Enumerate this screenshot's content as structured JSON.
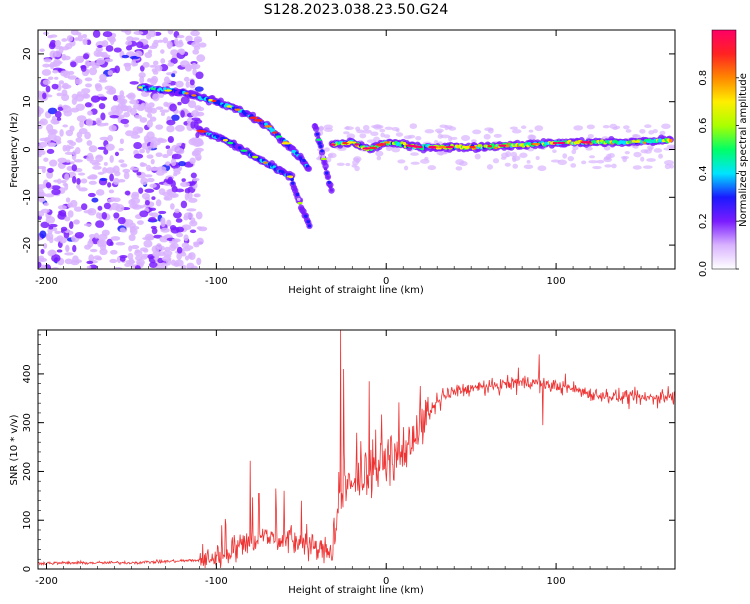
{
  "title": "S128.2023.038.23.50.G24",
  "chart_data": [
    {
      "type": "heatmap",
      "xlabel": "Height of straight line (km)",
      "ylabel": "Frequency (Hz)",
      "xlim": [
        -205,
        170
      ],
      "ylim": [
        -25,
        25
      ],
      "xticks": [
        -200,
        -100,
        0,
        100
      ],
      "yticks": [
        -20,
        -10,
        0,
        10,
        20
      ],
      "colorbar": {
        "label": "Normalized spectral amplitude",
        "range": [
          0,
          1
        ],
        "ticks": [
          0.0,
          0.2,
          0.4,
          0.6,
          0.8
        ],
        "tick_labels": [
          "0.0",
          "0.2",
          "0.4",
          "0.6",
          "0.8"
        ],
        "colors": [
          "#ffffff",
          "#d9b3ff",
          "#7a1cff",
          "#1a1aff",
          "#00e5ff",
          "#00ff66",
          "#aaff00",
          "#ffee00",
          "#ff8800",
          "#ff2222",
          "#ff0066"
        ]
      },
      "features": {
        "noise_x_range": [
          -205,
          -108
        ],
        "streaks": [
          {
            "x": [
              -145,
              -120,
              -100,
              -85,
              -70,
              -55,
              -45
            ],
            "y": [
              13,
              12,
              10,
              8,
              5,
              0,
              -4
            ],
            "amp": 0.32
          },
          {
            "x": [
              -110,
              -95,
              -80,
              -65,
              -55
            ],
            "y": [
              4,
              2,
              -1,
              -4,
              -6
            ],
            "amp": 0.28
          },
          {
            "x": [
              -55,
              -50,
              -45
            ],
            "y": [
              -7,
              -12,
              -16
            ],
            "amp": 0.2
          },
          {
            "x": [
              -42,
              -38,
              -35,
              -32
            ],
            "y": [
              5,
              0,
              -5,
              -9
            ],
            "amp": 0.2
          },
          {
            "x": [
              -32,
              -20,
              -10,
              0,
              20,
              50,
              80,
              110,
              140,
              168
            ],
            "y": [
              1,
              1.5,
              0,
              1.5,
              0.5,
              0.5,
              1,
              1.5,
              1.5,
              2
            ],
            "amp": 0.55
          }
        ]
      }
    },
    {
      "type": "line",
      "xlabel": "Height of straight line (km)",
      "ylabel": "SNR (10 * v/v)",
      "xlim": [
        -205,
        170
      ],
      "ylim": [
        0,
        490
      ],
      "xticks": [
        -200,
        -100,
        0,
        100
      ],
      "yticks": [
        0,
        100,
        200,
        300,
        400
      ],
      "color": "#ee3333",
      "baseline": {
        "x": [
          -205,
          -150,
          -110,
          -100,
          -90,
          -80,
          -70,
          -60,
          -50,
          -40,
          -30,
          -28,
          -20,
          -10,
          0,
          10,
          20,
          30,
          40,
          50,
          60,
          70,
          80,
          90,
          100,
          110,
          120,
          130,
          140,
          150,
          160,
          170
        ],
        "y": [
          12,
          13,
          18,
          25,
          40,
          60,
          65,
          60,
          55,
          40,
          35,
          150,
          170,
          200,
          220,
          240,
          290,
          340,
          365,
          370,
          372,
          378,
          385,
          380,
          375,
          370,
          360,
          355,
          352,
          350,
          352,
          355
        ]
      },
      "spikes": [
        {
          "x": -80,
          "y": 222
        },
        {
          "x": -75,
          "y": 155
        },
        {
          "x": -65,
          "y": 165
        },
        {
          "x": -50,
          "y": 140
        },
        {
          "x": -27,
          "y": 490
        },
        {
          "x": -25,
          "y": 410
        },
        {
          "x": -10,
          "y": 385
        },
        {
          "x": 90,
          "y": 440
        },
        {
          "x": 92,
          "y": 295
        }
      ]
    }
  ]
}
